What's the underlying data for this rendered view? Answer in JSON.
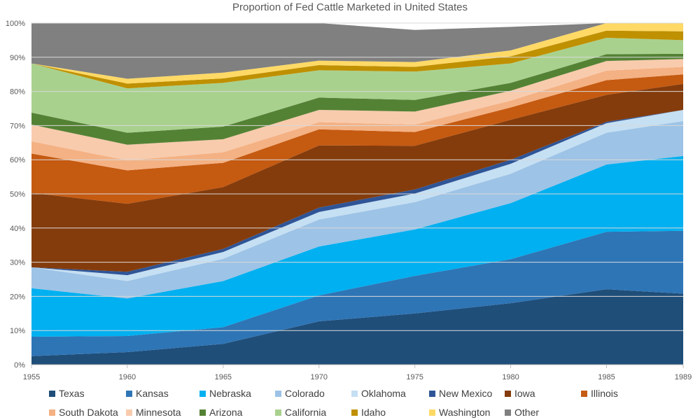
{
  "chart_data": {
    "type": "area",
    "stacked": true,
    "title": "Proportion of Fed Cattle Marketed in United States",
    "xlabel": "",
    "ylabel": "",
    "x": [
      1955,
      1960,
      1965,
      1970,
      1975,
      1980,
      1985,
      1989
    ],
    "x_tick_labels": [
      "1955",
      "1960",
      "1965",
      "1970",
      "1975",
      "1980",
      "1985",
      "1989"
    ],
    "ylim": [
      0,
      100
    ],
    "y_ticks": [
      0,
      10,
      20,
      30,
      40,
      50,
      60,
      70,
      80,
      90,
      100
    ],
    "y_tick_labels": [
      "0%",
      "10%",
      "20%",
      "30%",
      "40%",
      "50%",
      "60%",
      "70%",
      "80%",
      "90%",
      "100%"
    ],
    "legend_position": "bottom",
    "series": [
      {
        "name": "Texas",
        "color": "#1f4e79",
        "values": [
          2.5,
          3.7,
          6.1,
          12.7,
          15.0,
          18.0,
          22.1,
          20.8
        ]
      },
      {
        "name": "Kansas",
        "color": "#2e75b6",
        "values": [
          5.7,
          4.7,
          4.9,
          7.6,
          11.0,
          12.9,
          16.8,
          18.4
        ]
      },
      {
        "name": "Nebraska",
        "color": "#00b0f0",
        "values": [
          14.2,
          11.0,
          13.5,
          14.3,
          13.6,
          16.4,
          19.7,
          21.9
        ]
      },
      {
        "name": "Colorado",
        "color": "#9dc3e6",
        "values": [
          6.1,
          5.1,
          6.5,
          7.9,
          8.0,
          8.6,
          9.3,
          10.2
        ]
      },
      {
        "name": "Oklahoma",
        "color": "#c5dff3",
        "values": [
          0.0,
          1.7,
          2.0,
          2.2,
          2.5,
          2.9,
          2.8,
          3.3
        ]
      },
      {
        "name": "New Mexico",
        "color": "#2f5597",
        "values": [
          0.0,
          1.0,
          0.9,
          1.3,
          1.2,
          1.2,
          0.4,
          0.0
        ]
      },
      {
        "name": "Iowa",
        "color": "#843c0c",
        "values": [
          21.8,
          19.9,
          18.1,
          18.2,
          12.8,
          11.7,
          7.9,
          7.6
        ]
      },
      {
        "name": "Illinois",
        "color": "#c55a11",
        "values": [
          11.5,
          9.8,
          7.1,
          4.7,
          4.0,
          3.6,
          4.3,
          2.8
        ]
      },
      {
        "name": "South Dakota",
        "color": "#f4b183",
        "values": [
          3.6,
          2.9,
          3.1,
          2.1,
          2.2,
          2.0,
          2.8,
          2.2
        ]
      },
      {
        "name": "Minnesota",
        "color": "#f8cbad",
        "values": [
          4.9,
          4.6,
          3.8,
          3.6,
          3.8,
          2.9,
          2.8,
          2.3
        ]
      },
      {
        "name": "Arizona",
        "color": "#548235",
        "values": [
          3.5,
          3.5,
          3.7,
          3.6,
          3.4,
          2.3,
          2.0,
          1.5
        ]
      },
      {
        "name": "California",
        "color": "#a9d18e",
        "values": [
          14.4,
          13.0,
          12.8,
          8.0,
          8.3,
          5.7,
          4.8,
          4.0
        ]
      },
      {
        "name": "Idaho",
        "color": "#bf9000",
        "values": [
          0.0,
          1.4,
          1.3,
          1.5,
          1.4,
          2.1,
          2.1,
          2.6
        ]
      },
      {
        "name": "Washington",
        "color": "#ffd966",
        "values": [
          0.0,
          1.4,
          1.7,
          1.3,
          1.4,
          1.7,
          2.2,
          2.4
        ]
      },
      {
        "name": "Other",
        "color": "#808080",
        "values": [
          11.8,
          16.3,
          14.5,
          11.0,
          9.4,
          6.9,
          0.0,
          0.0
        ]
      }
    ]
  }
}
